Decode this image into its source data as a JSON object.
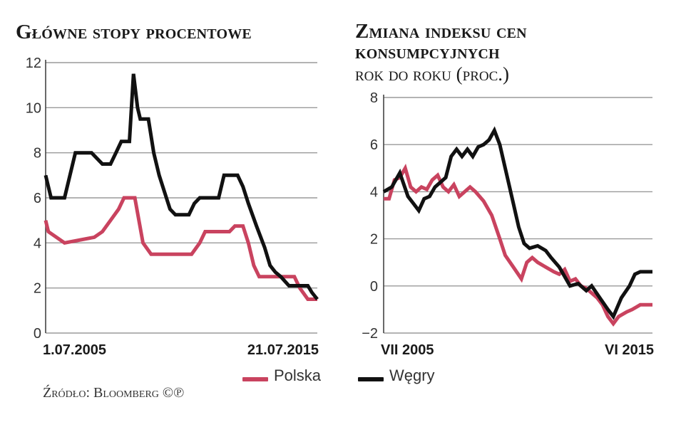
{
  "colors": {
    "polska": "#c9435f",
    "wegry": "#111111",
    "grid": "#9a9a9a",
    "axis": "#444444"
  },
  "legend": {
    "polska": "Polska",
    "wegry": "Węgry"
  },
  "source": "Źródło: Bloomberg ©℗",
  "chart_data": [
    {
      "type": "line",
      "title": "Główne stopy procentowe",
      "subtitle": "",
      "xlabel": "",
      "ylabel": "",
      "ylim": [
        0,
        12
      ],
      "yticks": [
        0,
        2,
        4,
        6,
        8,
        10,
        12
      ],
      "xlim": [
        2005.5,
        2015.55
      ],
      "xtick_labels": [
        {
          "label": "1.07.2005",
          "x": 2005.5
        },
        {
          "label": "21.07.2015",
          "x": 2015.55
        }
      ],
      "grid": true,
      "series": [
        {
          "name": "Polska",
          "points": [
            [
              2005.5,
              5.0
            ],
            [
              2005.6,
              4.5
            ],
            [
              2006.2,
              4.0
            ],
            [
              2007.3,
              4.25
            ],
            [
              2007.6,
              4.5
            ],
            [
              2007.9,
              5.0
            ],
            [
              2008.2,
              5.5
            ],
            [
              2008.4,
              6.0
            ],
            [
              2008.8,
              6.0
            ],
            [
              2009.1,
              4.0
            ],
            [
              2009.4,
              3.5
            ],
            [
              2010.9,
              3.5
            ],
            [
              2011.2,
              4.0
            ],
            [
              2011.4,
              4.5
            ],
            [
              2012.3,
              4.5
            ],
            [
              2012.5,
              4.75
            ],
            [
              2012.8,
              4.75
            ],
            [
              2013.0,
              4.0
            ],
            [
              2013.2,
              3.0
            ],
            [
              2013.4,
              2.5
            ],
            [
              2014.7,
              2.5
            ],
            [
              2014.9,
              2.0
            ],
            [
              2015.2,
              1.5
            ],
            [
              2015.55,
              1.5
            ]
          ]
        },
        {
          "name": "Węgry",
          "points": [
            [
              2005.5,
              7.0
            ],
            [
              2005.6,
              6.5
            ],
            [
              2005.7,
              6.0
            ],
            [
              2006.2,
              6.0
            ],
            [
              2006.4,
              7.0
            ],
            [
              2006.6,
              8.0
            ],
            [
              2007.2,
              8.0
            ],
            [
              2007.4,
              7.75
            ],
            [
              2007.6,
              7.5
            ],
            [
              2007.9,
              7.5
            ],
            [
              2008.1,
              8.0
            ],
            [
              2008.3,
              8.5
            ],
            [
              2008.6,
              8.5
            ],
            [
              2008.75,
              11.5
            ],
            [
              2008.9,
              10.0
            ],
            [
              2009.0,
              9.5
            ],
            [
              2009.3,
              9.5
            ],
            [
              2009.5,
              8.0
            ],
            [
              2009.7,
              7.0
            ],
            [
              2009.9,
              6.25
            ],
            [
              2010.1,
              5.5
            ],
            [
              2010.3,
              5.25
            ],
            [
              2010.8,
              5.25
            ],
            [
              2011.0,
              5.75
            ],
            [
              2011.2,
              6.0
            ],
            [
              2011.9,
              6.0
            ],
            [
              2012.1,
              7.0
            ],
            [
              2012.6,
              7.0
            ],
            [
              2012.8,
              6.5
            ],
            [
              2013.0,
              5.75
            ],
            [
              2013.3,
              4.75
            ],
            [
              2013.6,
              3.8
            ],
            [
              2013.8,
              3.0
            ],
            [
              2014.0,
              2.7
            ],
            [
              2014.2,
              2.5
            ],
            [
              2014.5,
              2.1
            ],
            [
              2015.2,
              2.1
            ],
            [
              2015.35,
              1.8
            ],
            [
              2015.55,
              1.5
            ]
          ]
        }
      ]
    },
    {
      "type": "line",
      "title": "Zmiana indeksu cen konsumpcyjnych",
      "subtitle": "rok do roku (proc.)",
      "xlabel": "",
      "ylabel": "",
      "ylim": [
        -2,
        8
      ],
      "yticks": [
        -2,
        0,
        2,
        4,
        6,
        8
      ],
      "xlim": [
        2005.5,
        2015.45
      ],
      "xtick_labels": [
        {
          "label": "VII 2005",
          "x": 2005.5
        },
        {
          "label": "VI 2015",
          "x": 2015.45
        }
      ],
      "grid": true,
      "series": [
        {
          "name": "Polska",
          "points": [
            [
              2005.5,
              3.7
            ],
            [
              2005.7,
              3.7
            ],
            [
              2005.9,
              4.5
            ],
            [
              2006.1,
              4.6
            ],
            [
              2006.3,
              5.0
            ],
            [
              2006.5,
              4.2
            ],
            [
              2006.7,
              4.0
            ],
            [
              2006.9,
              4.2
            ],
            [
              2007.1,
              4.1
            ],
            [
              2007.3,
              4.5
            ],
            [
              2007.5,
              4.7
            ],
            [
              2007.7,
              4.2
            ],
            [
              2007.9,
              4.0
            ],
            [
              2008.1,
              4.3
            ],
            [
              2008.3,
              3.8
            ],
            [
              2008.5,
              4.0
            ],
            [
              2008.7,
              4.2
            ],
            [
              2008.9,
              4.0
            ],
            [
              2009.2,
              3.6
            ],
            [
              2009.5,
              3.0
            ],
            [
              2009.8,
              2.0
            ],
            [
              2010.0,
              1.3
            ],
            [
              2010.3,
              0.8
            ],
            [
              2010.6,
              0.3
            ],
            [
              2010.8,
              1.0
            ],
            [
              2011.0,
              1.2
            ],
            [
              2011.2,
              1.0
            ],
            [
              2011.5,
              0.8
            ],
            [
              2011.8,
              0.6
            ],
            [
              2012.0,
              0.5
            ],
            [
              2012.2,
              0.7
            ],
            [
              2012.4,
              0.2
            ],
            [
              2012.6,
              0.3
            ],
            [
              2012.8,
              0.0
            ],
            [
              2013.0,
              -0.1
            ],
            [
              2013.2,
              -0.3
            ],
            [
              2013.4,
              -0.5
            ],
            [
              2013.6,
              -0.8
            ],
            [
              2013.8,
              -1.3
            ],
            [
              2014.0,
              -1.6
            ],
            [
              2014.2,
              -1.3
            ],
            [
              2014.5,
              -1.1
            ],
            [
              2014.7,
              -1.0
            ],
            [
              2015.0,
              -0.8
            ],
            [
              2015.45,
              -0.8
            ]
          ]
        },
        {
          "name": "Węgry",
          "points": [
            [
              2005.5,
              4.0
            ],
            [
              2005.8,
              4.2
            ],
            [
              2006.1,
              4.8
            ],
            [
              2006.4,
              3.8
            ],
            [
              2006.6,
              3.5
            ],
            [
              2006.8,
              3.2
            ],
            [
              2007.0,
              3.7
            ],
            [
              2007.2,
              3.8
            ],
            [
              2007.4,
              4.2
            ],
            [
              2007.6,
              4.4
            ],
            [
              2007.8,
              4.6
            ],
            [
              2008.0,
              5.5
            ],
            [
              2008.2,
              5.8
            ],
            [
              2008.4,
              5.5
            ],
            [
              2008.6,
              5.8
            ],
            [
              2008.8,
              5.5
            ],
            [
              2009.0,
              5.9
            ],
            [
              2009.2,
              6.0
            ],
            [
              2009.4,
              6.2
            ],
            [
              2009.6,
              6.6
            ],
            [
              2009.8,
              6.0
            ],
            [
              2010.0,
              5.0
            ],
            [
              2010.3,
              3.5
            ],
            [
              2010.5,
              2.5
            ],
            [
              2010.7,
              1.8
            ],
            [
              2010.9,
              1.6
            ],
            [
              2011.2,
              1.7
            ],
            [
              2011.5,
              1.5
            ],
            [
              2011.7,
              1.2
            ],
            [
              2012.0,
              0.8
            ],
            [
              2012.2,
              0.4
            ],
            [
              2012.4,
              0.0
            ],
            [
              2012.7,
              0.1
            ],
            [
              2013.0,
              -0.2
            ],
            [
              2013.2,
              0.0
            ],
            [
              2013.5,
              -0.5
            ],
            [
              2013.8,
              -1.0
            ],
            [
              2014.0,
              -1.3
            ],
            [
              2014.3,
              -0.5
            ],
            [
              2014.6,
              0.0
            ],
            [
              2014.8,
              0.5
            ],
            [
              2015.0,
              0.6
            ],
            [
              2015.45,
              0.6
            ]
          ]
        }
      ]
    }
  ]
}
